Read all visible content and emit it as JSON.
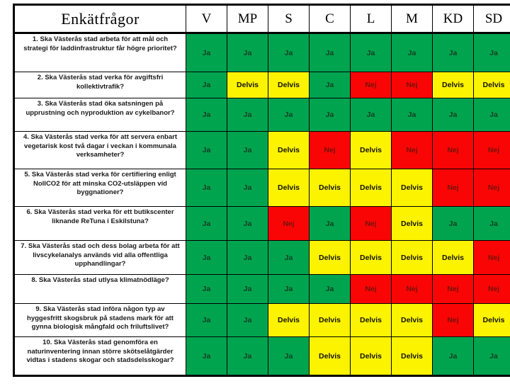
{
  "page": {
    "background": "#ffffff"
  },
  "table": {
    "header": {
      "title": "Enkätfrågor",
      "parties": [
        "V",
        "MP",
        "S",
        "C",
        "L",
        "M",
        "KD",
        "SD"
      ]
    },
    "answer_colors": {
      "yes_bg": "#00a44f",
      "yes_text": "#143f20",
      "partial_bg": "#fbf300",
      "partial_text": "#151300",
      "no_bg": "#fa0505",
      "no_text": "#731309"
    },
    "status_by_label": {
      "Ja": "yes",
      "Delvis": "partial",
      "Nej": "no"
    },
    "rows": [
      {
        "question": "1. Ska Västerås stad arbeta för att mål och strategi för laddinfrastruktur får högre prioritet?",
        "answers": [
          "Ja",
          "Ja",
          "Ja",
          "Ja",
          "Ja",
          "Ja",
          "Ja",
          "Ja"
        ]
      },
      {
        "question": "2. Ska Västerås stad verka för avgiftsfri kollektivtrafik?",
        "answers": [
          "Ja",
          "Delvis",
          "Delvis",
          "Ja",
          "Nej",
          "Nej",
          "Delvis",
          "Delvis"
        ]
      },
      {
        "question": "3. Ska Västerås stad öka satsningen på upprustning och nyproduktion av cykelbanor?",
        "answers": [
          "Ja",
          "Ja",
          "Ja",
          "Ja",
          "Ja",
          "Ja",
          "Ja",
          "Ja"
        ]
      },
      {
        "question": "4. Ska Västerås stad verka för att servera enbart vegetarisk kost två dagar i veckan i kommunala verksamheter?",
        "answers": [
          "Ja",
          "Ja",
          "Delvis",
          "Nej",
          "Delvis",
          "Nej",
          "Nej",
          "Nej"
        ]
      },
      {
        "question": "5. Ska Västerås stad verka för certifiering enligt NollCO2 för att minska CO2-utsläppen vid byggnationer?",
        "answers": [
          "Ja",
          "Ja",
          "Delvis",
          "Delvis",
          "Delvis",
          "Delvis",
          "Nej",
          "Nej"
        ]
      },
      {
        "question": "6. Ska Västerås stad verka för ett butikscenter liknande ReTuna i Eskilstuna?",
        "answers": [
          "Ja",
          "Ja",
          "Nej",
          "Ja",
          "Nej",
          "Delvis",
          "Ja",
          "Ja"
        ]
      },
      {
        "question": "7. Ska Västerås stad och dess bolag arbeta för att livscykelanalys används vid alla offentliga upphandlingar?",
        "answers": [
          "Ja",
          "Ja",
          "Ja",
          "Delvis",
          "Delvis",
          "Delvis",
          "Delvis",
          "Nej"
        ]
      },
      {
        "question": "8. Ska Västerås stad utlysa klimatnödläge?",
        "answers": [
          "Ja",
          "Ja",
          "Ja",
          "Ja",
          "Nej",
          "Nej",
          "Nej",
          "Nej"
        ]
      },
      {
        "question": "9. Ska Västerås stad införa någon typ av hyggesfritt skogsbruk på stadens mark för att gynna biologisk mångfald och friluftslivet?",
        "answers": [
          "Ja",
          "Ja",
          "Delvis",
          "Delvis",
          "Delvis",
          "Delvis",
          "Nej",
          "Delvis"
        ]
      },
      {
        "question": "10. Ska Västerås stad genomföra en naturinventering innan större skötselåtgärder vidtas i stadens skogar och stadsdelsskogar?",
        "answers": [
          "Ja",
          "Ja",
          "Ja",
          "Delvis",
          "Delvis",
          "Delvis",
          "Ja",
          "Ja"
        ]
      }
    ]
  }
}
